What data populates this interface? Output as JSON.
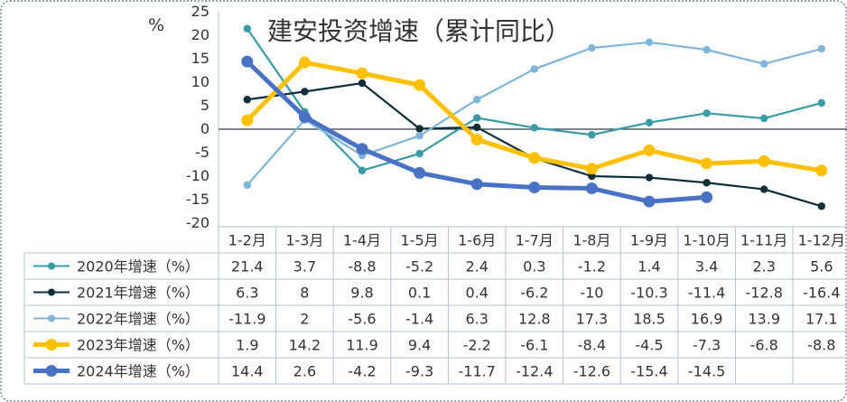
{
  "chart_data": {
    "type": "line",
    "title": "建安投资增速（累计同比）",
    "ylabel": "%",
    "ylim": [
      -20,
      25
    ],
    "yticks": [
      25,
      20,
      15,
      10,
      5,
      0,
      -5,
      -10,
      -15,
      -20
    ],
    "categories": [
      "1-2月",
      "1-3月",
      "1-4月",
      "1-5月",
      "1-6月",
      "1-7月",
      "1-8月",
      "1-9月",
      "1-10月",
      "1-11月",
      "1-12月"
    ],
    "series": [
      {
        "name": "2020年增速（%）",
        "color": "#3a9ba6",
        "values": [
          21.4,
          3.7,
          -8.8,
          -5.2,
          2.4,
          0.3,
          -1.2,
          1.4,
          3.4,
          2.3,
          5.6
        ]
      },
      {
        "name": "2021年增速（%）",
        "color": "#0e2e3a",
        "values": [
          6.3,
          8,
          9.8,
          0.1,
          0.4,
          -6.2,
          -10,
          -10.3,
          -11.4,
          -12.8,
          -16.4
        ]
      },
      {
        "name": "2022年增速（%）",
        "color": "#7fb5d6",
        "values": [
          -11.9,
          2,
          -5.6,
          -1.4,
          6.3,
          12.8,
          17.3,
          18.5,
          16.9,
          13.9,
          17.1
        ]
      },
      {
        "name": "2023年增速（%）",
        "color": "#ffc000",
        "values": [
          1.9,
          14.2,
          11.9,
          9.4,
          -2.2,
          -6.1,
          -8.4,
          -4.5,
          -7.3,
          -6.8,
          -8.8
        ]
      },
      {
        "name": "2024年增速（%）",
        "color": "#4a72c4",
        "values": [
          14.4,
          2.6,
          -4.2,
          -9.3,
          -11.7,
          -12.4,
          -12.6,
          -15.4,
          -14.5,
          null,
          null
        ]
      }
    ],
    "grid": false,
    "legend": "data-table"
  }
}
